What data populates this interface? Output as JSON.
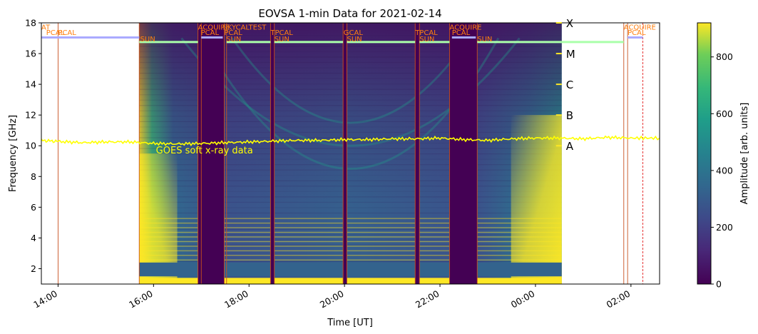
{
  "chart_data": {
    "type": "heatmap",
    "title": "EOVSA 1-min Data for 2021-02-14",
    "xlabel": "Time [UT]",
    "ylabel": "Frequency [GHz]",
    "xlim_hours": [
      13.65,
      26.6
    ],
    "ylim": [
      1,
      18
    ],
    "x_ticks": [
      {
        "h": 14,
        "label": "14:00"
      },
      {
        "h": 16,
        "label": "16:00"
      },
      {
        "h": 18,
        "label": "18:00"
      },
      {
        "h": 20,
        "label": "20:00"
      },
      {
        "h": 22,
        "label": "22:00"
      },
      {
        "h": 24,
        "label": "00:00"
      },
      {
        "h": 26,
        "label": "02:00"
      }
    ],
    "y_ticks": [
      2,
      4,
      6,
      8,
      10,
      12,
      14,
      16,
      18
    ],
    "colorbar": {
      "label": "Amplitude [arb. units]",
      "range": [
        0,
        920
      ],
      "ticks": [
        0,
        200,
        400,
        600,
        800
      ],
      "colormap": "viridis"
    },
    "dynamic_spectrum": {
      "start_hour": 15.7,
      "end_hour": 24.55,
      "freq_range_ghz": [
        1,
        18
      ]
    },
    "gaps": [
      {
        "start": 16.93,
        "end": 17.48
      },
      {
        "start": 18.45,
        "end": 18.53
      },
      {
        "start": 19.97,
        "end": 20.05
      },
      {
        "start": 21.48,
        "end": 21.57
      },
      {
        "start": 22.2,
        "end": 22.78
      }
    ],
    "calibration_lines_hours": [
      13.65,
      14.0,
      15.7,
      16.93,
      17.0,
      17.48,
      17.53,
      18.45,
      18.53,
      19.97,
      20.05,
      21.48,
      21.57,
      22.2,
      22.78,
      25.85,
      25.93
    ],
    "dashed_line_hour": 26.25,
    "scan_bars": [
      {
        "start": 13.65,
        "end": 15.7,
        "freq": 17.05,
        "color": "#aaaaff"
      },
      {
        "start": 15.7,
        "end": 16.93,
        "freq": 16.75,
        "color": "#aaffaa"
      },
      {
        "start": 17.0,
        "end": 17.45,
        "freq": 17.05,
        "color": "#aaaaff"
      },
      {
        "start": 17.53,
        "end": 18.45,
        "freq": 16.75,
        "color": "#aaffaa"
      },
      {
        "start": 18.53,
        "end": 19.97,
        "freq": 16.75,
        "color": "#aaffaa"
      },
      {
        "start": 20.05,
        "end": 21.48,
        "freq": 16.75,
        "color": "#aaffaa"
      },
      {
        "start": 21.57,
        "end": 22.2,
        "freq": 16.75,
        "color": "#aaffaa"
      },
      {
        "start": 22.25,
        "end": 22.75,
        "freq": 17.05,
        "color": "#aaaaff"
      },
      {
        "start": 22.78,
        "end": 24.55,
        "freq": 16.75,
        "color": "#aaffaa"
      },
      {
        "start": 24.55,
        "end": 25.85,
        "freq": 16.75,
        "color": "#aaffaa"
      },
      {
        "start": 25.93,
        "end": 26.25,
        "freq": 17.05,
        "color": "#aaaaff"
      }
    ],
    "scan_labels": [
      {
        "text": "AT",
        "h": 13.65,
        "freq": 17.55
      },
      {
        "text": "PCAL",
        "h": 13.75,
        "freq": 17.2
      },
      {
        "text": "PCAL",
        "h": 14.0,
        "freq": 17.2
      },
      {
        "text": "SUN",
        "h": 15.72,
        "freq": 16.8
      },
      {
        "text": "ACQUIRE",
        "h": 16.93,
        "freq": 17.55
      },
      {
        "text": "PCAL",
        "h": 16.99,
        "freq": 17.2
      },
      {
        "text": "SKYCALTEST",
        "h": 17.45,
        "freq": 17.55
      },
      {
        "text": "PCAL",
        "h": 17.48,
        "freq": 17.2
      },
      {
        "text": "SUN",
        "h": 17.52,
        "freq": 16.8
      },
      {
        "text": "TPCAL",
        "h": 18.45,
        "freq": 17.2
      },
      {
        "text": "SUN",
        "h": 18.53,
        "freq": 16.8
      },
      {
        "text": "GCAL",
        "h": 19.98,
        "freq": 17.2
      },
      {
        "text": "SUN",
        "h": 20.05,
        "freq": 16.8
      },
      {
        "text": "TPCAL",
        "h": 21.48,
        "freq": 17.2
      },
      {
        "text": "SUN",
        "h": 21.57,
        "freq": 16.8
      },
      {
        "text": "ACQUIRE",
        "h": 22.2,
        "freq": 17.55
      },
      {
        "text": "PCAL",
        "h": 22.25,
        "freq": 17.2
      },
      {
        "text": "SUN",
        "h": 22.78,
        "freq": 16.8
      },
      {
        "text": "ACQUIRE",
        "h": 25.85,
        "freq": 17.55
      },
      {
        "text": "PCAL",
        "h": 25.93,
        "freq": 17.2
      }
    ],
    "goes": {
      "label": "GOES soft x-ray data",
      "label_h": 16.05,
      "label_freq": 9.5,
      "color": "#ffff00",
      "points": [
        [
          13.65,
          10.35
        ],
        [
          14.0,
          10.28
        ],
        [
          14.5,
          10.2
        ],
        [
          15.0,
          10.25
        ],
        [
          15.5,
          10.25
        ],
        [
          16.0,
          10.15
        ],
        [
          16.5,
          10.12
        ],
        [
          17.0,
          10.15
        ],
        [
          17.5,
          10.2
        ],
        [
          18.0,
          10.25
        ],
        [
          18.5,
          10.3
        ],
        [
          19.0,
          10.35
        ],
        [
          19.5,
          10.35
        ],
        [
          20.0,
          10.4
        ],
        [
          20.5,
          10.4
        ],
        [
          21.0,
          10.45
        ],
        [
          21.5,
          10.45
        ],
        [
          22.0,
          10.5
        ],
        [
          22.5,
          10.4
        ],
        [
          23.0,
          10.35
        ],
        [
          23.5,
          10.45
        ],
        [
          24.0,
          10.5
        ],
        [
          24.5,
          10.5
        ],
        [
          25.0,
          10.45
        ],
        [
          25.5,
          10.55
        ],
        [
          26.0,
          10.5
        ],
        [
          26.6,
          10.5
        ]
      ]
    },
    "goes_classes": [
      {
        "label": "A",
        "freq": 10.0
      },
      {
        "label": "B",
        "freq": 12.0
      },
      {
        "label": "C",
        "freq": 14.0
      },
      {
        "label": "M",
        "freq": 16.0
      },
      {
        "label": "X",
        "freq": 18.0
      }
    ]
  }
}
